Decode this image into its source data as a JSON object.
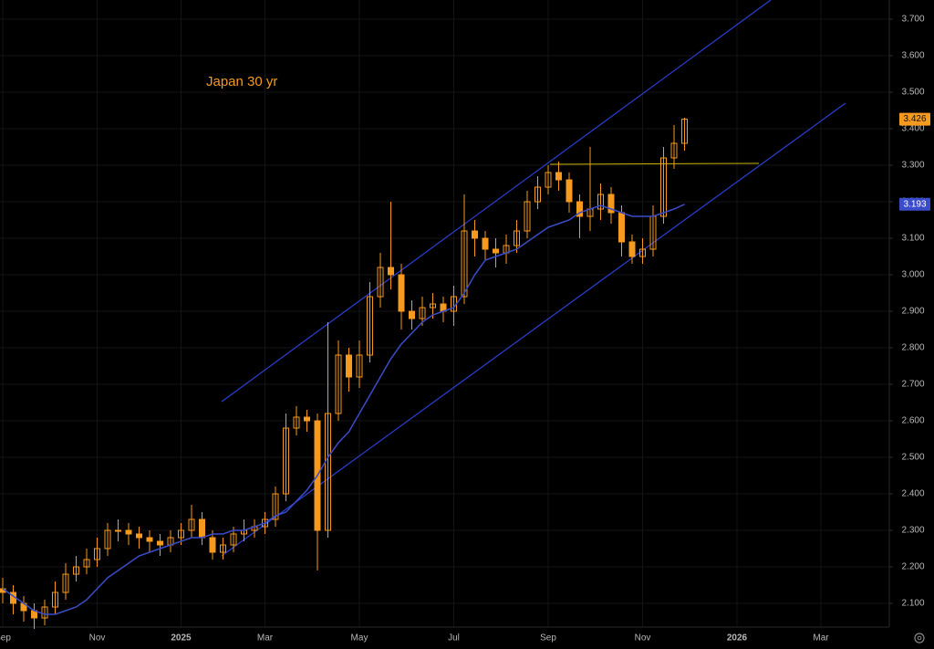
{
  "chart_data": {
    "type": "candlestick",
    "title": "Japan 30 yr",
    "categories": [
      "Sep",
      null,
      null,
      null,
      null,
      null,
      null,
      null,
      null,
      "Nov",
      null,
      null,
      null,
      null,
      null,
      null,
      null,
      "2025",
      null,
      null,
      null,
      null,
      null,
      null,
      null,
      "Mar",
      null,
      null,
      null,
      null,
      null,
      null,
      null,
      null,
      "May",
      null,
      null,
      null,
      null,
      null,
      null,
      null,
      null,
      "Jul",
      null,
      null,
      null,
      null,
      null,
      null,
      null,
      null,
      "Sep",
      null,
      null,
      null,
      null,
      null,
      null,
      null,
      null,
      "Nov",
      null,
      null,
      null,
      null,
      null,
      null,
      null,
      null,
      "2026",
      null,
      null,
      null,
      null,
      null,
      null,
      null,
      "Mar",
      null,
      null,
      null,
      null,
      null,
      null
    ],
    "open": [
      2.14,
      2.13,
      2.1,
      2.08,
      2.06,
      2.09,
      2.13,
      2.18,
      2.2,
      2.22,
      2.25,
      2.3,
      2.3,
      2.29,
      2.28,
      2.27,
      2.26,
      2.28,
      2.3,
      2.33,
      2.28,
      2.24,
      2.26,
      2.29,
      2.3,
      2.31,
      2.33,
      2.4,
      2.58,
      2.61,
      2.6,
      2.3,
      2.62,
      2.78,
      2.72,
      2.78,
      2.94,
      3.02,
      3.0,
      2.9,
      2.88,
      2.91,
      2.92,
      2.9,
      2.94,
      3.12,
      3.1,
      3.07,
      3.06,
      3.08,
      3.12,
      3.2,
      3.24,
      3.28,
      3.26,
      3.2,
      3.16,
      3.18,
      3.22,
      3.17,
      3.09,
      3.05,
      3.07,
      3.16,
      3.32,
      3.36,
      null,
      null,
      null,
      null,
      null,
      null,
      null,
      null,
      null,
      null,
      null,
      null,
      null,
      null,
      null,
      null,
      null,
      null,
      null
    ],
    "high": [
      2.17,
      2.15,
      2.12,
      2.1,
      2.11,
      2.16,
      2.21,
      2.23,
      2.25,
      2.28,
      2.32,
      2.33,
      2.32,
      2.31,
      2.3,
      2.29,
      2.3,
      2.32,
      2.37,
      2.35,
      2.3,
      2.28,
      2.31,
      2.33,
      2.33,
      2.35,
      2.42,
      2.62,
      2.64,
      2.63,
      2.62,
      2.87,
      2.82,
      2.8,
      2.82,
      2.98,
      3.06,
      3.2,
      3.03,
      2.93,
      2.94,
      2.95,
      2.94,
      2.97,
      3.22,
      3.15,
      3.12,
      3.1,
      3.11,
      3.15,
      3.23,
      3.27,
      3.3,
      3.31,
      3.28,
      3.22,
      3.35,
      3.25,
      3.24,
      3.19,
      3.11,
      3.1,
      3.19,
      3.35,
      3.41,
      3.43,
      null,
      null,
      null,
      null,
      null,
      null,
      null,
      null,
      null,
      null,
      null,
      null,
      null,
      null,
      null,
      null,
      null,
      null,
      null
    ],
    "low": [
      2.1,
      2.07,
      2.05,
      2.03,
      2.04,
      2.07,
      2.11,
      2.16,
      2.18,
      2.2,
      2.23,
      2.27,
      2.26,
      2.25,
      2.24,
      2.23,
      2.24,
      2.26,
      2.28,
      2.26,
      2.22,
      2.22,
      2.24,
      2.27,
      2.28,
      2.29,
      2.31,
      2.38,
      2.56,
      2.57,
      2.19,
      2.28,
      2.6,
      2.68,
      2.69,
      2.76,
      2.91,
      2.96,
      2.85,
      2.85,
      2.86,
      2.88,
      2.87,
      2.86,
      2.92,
      3.05,
      3.04,
      3.02,
      3.03,
      3.06,
      3.1,
      3.18,
      3.22,
      3.23,
      3.17,
      3.1,
      3.12,
      3.15,
      3.14,
      3.05,
      3.03,
      3.03,
      3.05,
      3.14,
      3.29,
      3.34,
      null,
      null,
      null,
      null,
      null,
      null,
      null,
      null,
      null,
      null,
      null,
      null,
      null,
      null,
      null,
      null,
      null,
      null,
      null
    ],
    "close": [
      2.13,
      2.1,
      2.08,
      2.06,
      2.09,
      2.13,
      2.18,
      2.2,
      2.22,
      2.25,
      2.3,
      2.3,
      2.29,
      2.28,
      2.27,
      2.26,
      2.28,
      2.3,
      2.33,
      2.28,
      2.24,
      2.26,
      2.29,
      2.3,
      2.31,
      2.33,
      2.4,
      2.58,
      2.61,
      2.6,
      2.3,
      2.62,
      2.78,
      2.72,
      2.78,
      2.94,
      3.02,
      3.0,
      2.9,
      2.88,
      2.91,
      2.92,
      2.9,
      2.94,
      3.12,
      3.1,
      3.07,
      3.06,
      3.08,
      3.12,
      3.2,
      3.24,
      3.28,
      3.26,
      3.2,
      3.16,
      3.18,
      3.22,
      3.17,
      3.09,
      3.05,
      3.07,
      3.16,
      3.32,
      3.36,
      3.426,
      null,
      null,
      null,
      null,
      null,
      null,
      null,
      null,
      null,
      null,
      null,
      null,
      null,
      null,
      null,
      null,
      null,
      null,
      null
    ],
    "color": "#f59a1e",
    "moving_average": {
      "color": "#3b4cc8",
      "values": [
        2.14,
        2.12,
        2.1,
        2.08,
        2.07,
        2.07,
        2.08,
        2.09,
        2.11,
        2.14,
        2.17,
        2.19,
        2.21,
        2.23,
        2.24,
        2.25,
        2.26,
        2.27,
        2.28,
        2.28,
        2.29,
        2.29,
        2.3,
        2.3,
        2.31,
        2.32,
        2.34,
        2.35,
        2.38,
        2.41,
        2.45,
        2.5,
        2.54,
        2.57,
        2.62,
        2.67,
        2.72,
        2.77,
        2.81,
        2.84,
        2.87,
        2.89,
        2.9,
        2.91,
        2.95,
        3.0,
        3.04,
        3.05,
        3.06,
        3.07,
        3.09,
        3.11,
        3.13,
        3.14,
        3.15,
        3.17,
        3.18,
        3.19,
        3.18,
        3.17,
        3.16,
        3.16,
        3.16,
        3.17,
        3.18,
        3.193,
        null,
        null,
        null,
        null,
        null,
        null,
        null,
        null,
        null,
        null,
        null,
        null,
        null,
        null,
        null,
        null,
        null,
        null,
        null
      ]
    },
    "ylim": [
      2.035,
      3.7525
    ],
    "yticks": [
      {
        "value": 2.1,
        "label": "2.100"
      },
      {
        "value": 2.2,
        "label": "2.200"
      },
      {
        "value": 2.3,
        "label": "2.300"
      },
      {
        "value": 2.4,
        "label": "2.400"
      },
      {
        "value": 2.5,
        "label": "2.500"
      },
      {
        "value": 2.6,
        "label": "2.600"
      },
      {
        "value": 2.7,
        "label": "2.700"
      },
      {
        "value": 2.8,
        "label": "2.800"
      },
      {
        "value": 2.9,
        "label": "2.900"
      },
      {
        "value": 3.0,
        "label": "3.000"
      },
      {
        "value": 3.1,
        "label": "3.100"
      },
      {
        "value": 3.2,
        "label": "3.200"
      },
      {
        "value": 3.3,
        "label": "3.300"
      },
      {
        "value": 3.4,
        "label": "3.400"
      },
      {
        "value": 3.5,
        "label": "3.500"
      },
      {
        "value": 3.6,
        "label": "3.600"
      },
      {
        "value": 3.7,
        "label": "3.700"
      }
    ],
    "grid": true
  }
}
